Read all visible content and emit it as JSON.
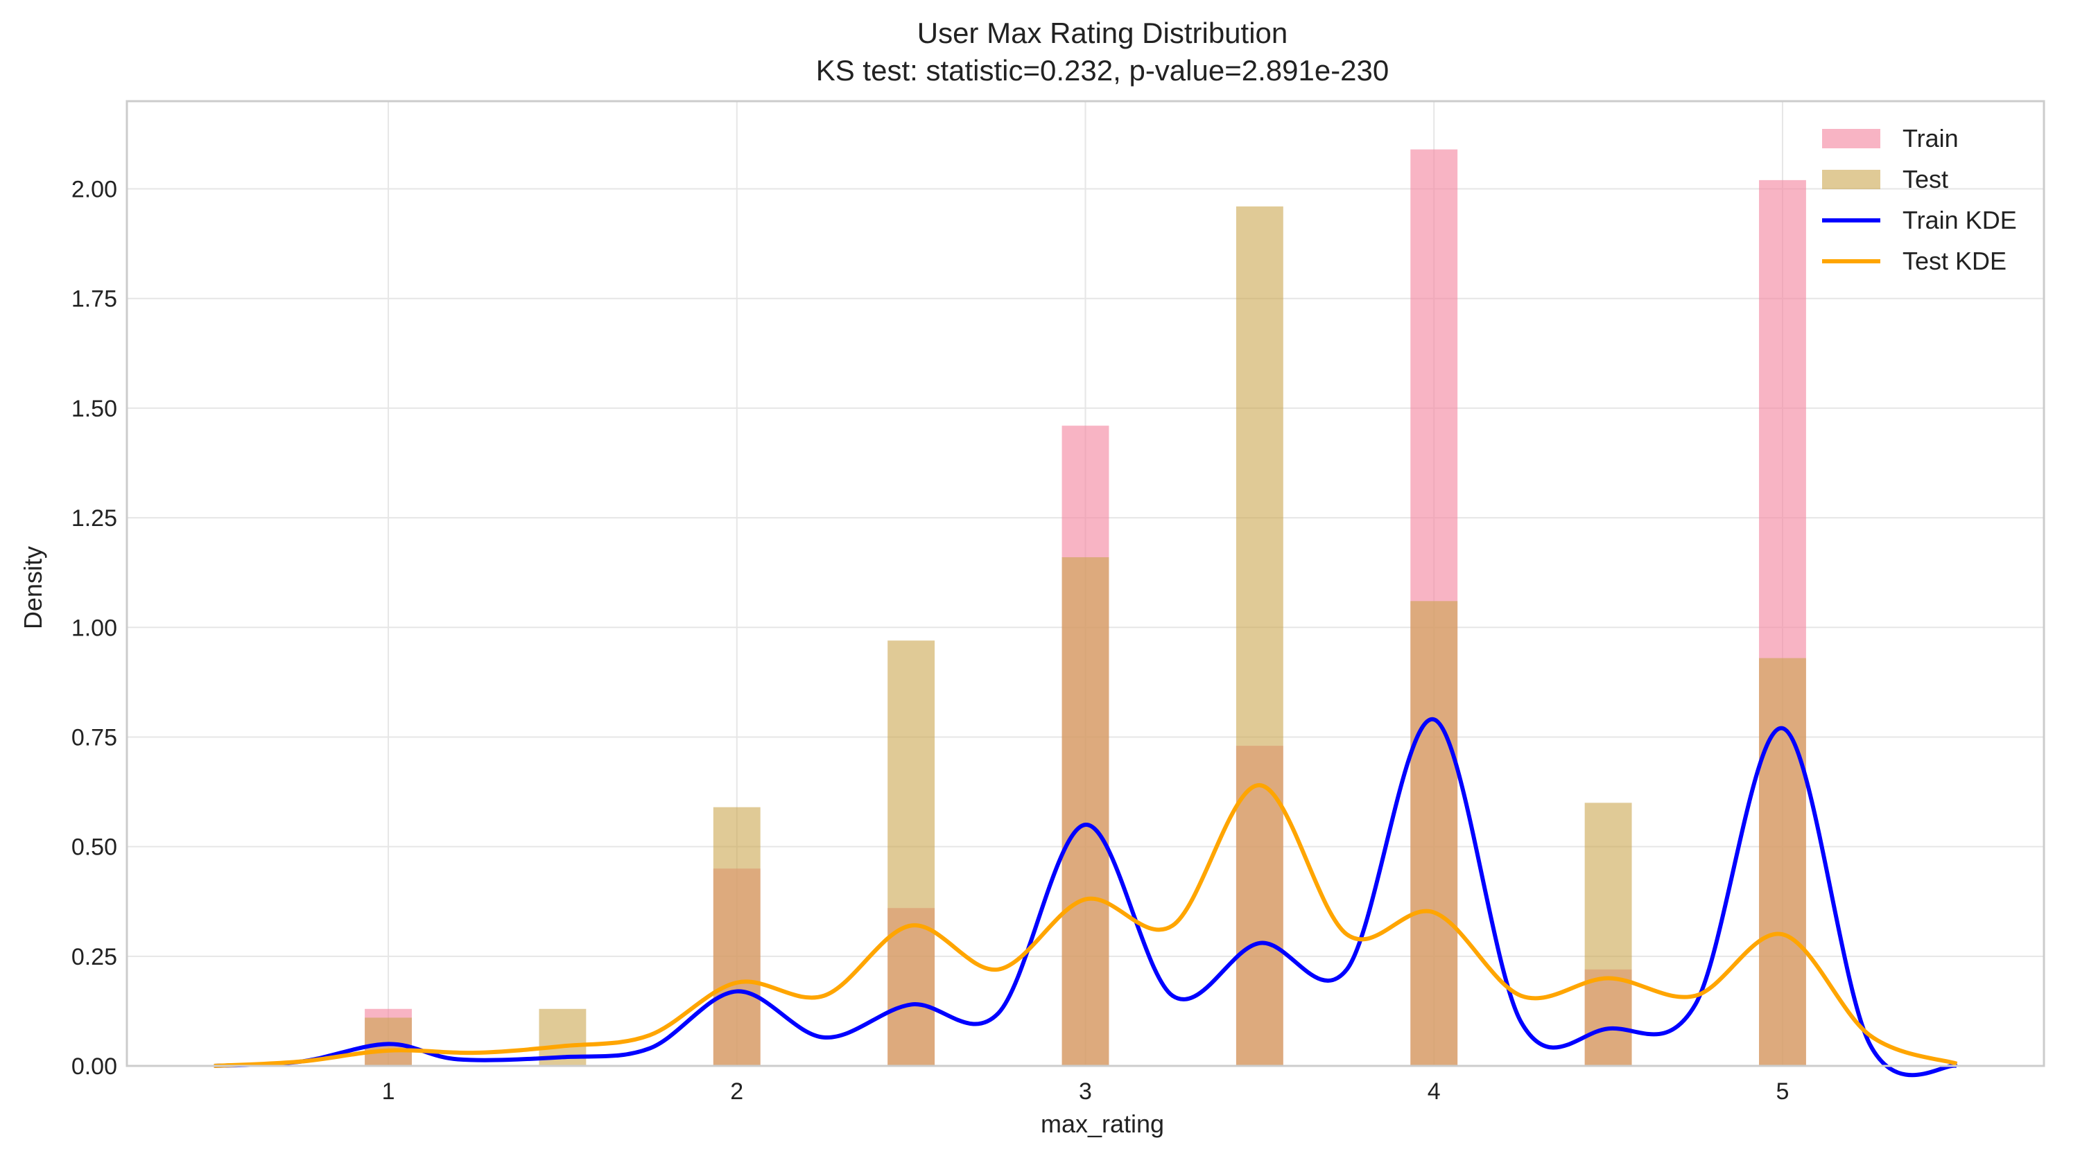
{
  "chart_data": {
    "type": "bar",
    "title": "User Max Rating Distribution",
    "subtitle": "KS test: statistic=0.232, p-value=2.891e-230",
    "xlabel": "max_rating",
    "ylabel": "Density",
    "xlim": [
      0.25,
      5.75
    ],
    "ylim": [
      0,
      2.2
    ],
    "xticks": [
      1,
      2,
      3,
      4,
      5
    ],
    "yticks": [
      0.0,
      0.25,
      0.5,
      0.75,
      1.0,
      1.25,
      1.5,
      1.75,
      2.0
    ],
    "grid": true,
    "legend_position": "top-right",
    "bar_width": 0.135,
    "series": [
      {
        "name": "Train",
        "kind": "histogram",
        "color": "#f4869f",
        "opacity": 0.62,
        "x": [
          1.0,
          1.5,
          2.0,
          2.5,
          3.0,
          3.5,
          4.0,
          4.5,
          5.0
        ],
        "values": [
          0.13,
          0.0,
          0.45,
          0.36,
          1.46,
          0.73,
          2.09,
          0.22,
          2.02
        ]
      },
      {
        "name": "Test",
        "kind": "histogram",
        "color": "#c9a44a",
        "opacity": 0.58,
        "x": [
          1.0,
          1.5,
          2.0,
          2.5,
          3.0,
          3.5,
          4.0,
          4.5,
          5.0
        ],
        "values": [
          0.11,
          0.13,
          0.59,
          0.97,
          1.16,
          1.96,
          1.06,
          0.6,
          0.93
        ]
      },
      {
        "name": "Train KDE",
        "kind": "line",
        "color": "#0000ff",
        "x": [
          0.5,
          0.75,
          1.0,
          1.2,
          1.5,
          1.75,
          2.0,
          2.25,
          2.5,
          2.75,
          3.0,
          3.25,
          3.5,
          3.75,
          4.0,
          4.25,
          4.5,
          4.75,
          5.0,
          5.25,
          5.5
        ],
        "values": [
          0.0,
          0.01,
          0.05,
          0.015,
          0.02,
          0.04,
          0.17,
          0.065,
          0.14,
          0.12,
          0.55,
          0.16,
          0.28,
          0.22,
          0.79,
          0.1,
          0.085,
          0.14,
          0.77,
          0.05,
          0.0
        ]
      },
      {
        "name": "Test KDE",
        "kind": "line",
        "color": "#ffa500",
        "x": [
          0.5,
          0.75,
          1.0,
          1.25,
          1.5,
          1.75,
          2.0,
          2.25,
          2.5,
          2.75,
          3.0,
          3.25,
          3.5,
          3.75,
          4.0,
          4.25,
          4.5,
          4.75,
          5.0,
          5.25,
          5.5
        ],
        "values": [
          0.0,
          0.01,
          0.035,
          0.03,
          0.045,
          0.07,
          0.19,
          0.16,
          0.32,
          0.22,
          0.38,
          0.32,
          0.64,
          0.3,
          0.35,
          0.16,
          0.2,
          0.16,
          0.3,
          0.07,
          0.005
        ]
      }
    ]
  }
}
